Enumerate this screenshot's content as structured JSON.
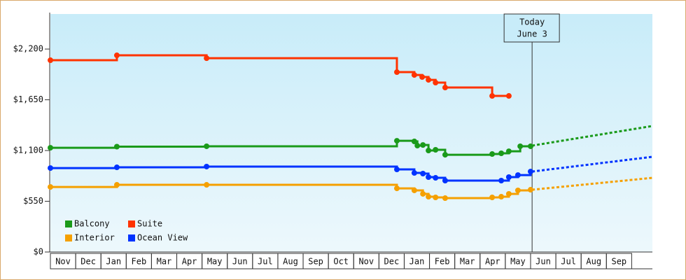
{
  "chart_data": {
    "type": "step-line",
    "ylim": [
      0,
      2580
    ],
    "yticks": [
      {
        "value": 0,
        "label": "$0"
      },
      {
        "value": 550,
        "label": "$550"
      },
      {
        "value": 1100,
        "label": "$1,100"
      },
      {
        "value": 1650,
        "label": "$1,650"
      },
      {
        "value": 2200,
        "label": "$2,200"
      }
    ],
    "xlim": [
      0,
      23.82
    ],
    "xticks": [
      {
        "value": 0,
        "label": "Nov"
      },
      {
        "value": 1,
        "label": "Dec"
      },
      {
        "value": 2,
        "label": "Jan"
      },
      {
        "value": 3,
        "label": "Feb"
      },
      {
        "value": 4,
        "label": "Mar"
      },
      {
        "value": 5,
        "label": "Apr"
      },
      {
        "value": 6,
        "label": "May"
      },
      {
        "value": 7,
        "label": "Jun"
      },
      {
        "value": 8,
        "label": "Jul"
      },
      {
        "value": 9,
        "label": "Aug"
      },
      {
        "value": 10,
        "label": "Sep"
      },
      {
        "value": 11,
        "label": "Oct"
      },
      {
        "value": 12,
        "label": "Nov"
      },
      {
        "value": 13,
        "label": "Dec"
      },
      {
        "value": 14,
        "label": "Jan"
      },
      {
        "value": 15,
        "label": "Feb"
      },
      {
        "value": 16,
        "label": "Mar"
      },
      {
        "value": 17,
        "label": "Apr"
      },
      {
        "value": 18,
        "label": "May"
      },
      {
        "value": 19,
        "label": "Jun"
      },
      {
        "value": 20,
        "label": "Jul"
      },
      {
        "value": 21,
        "label": "Aug"
      },
      {
        "value": 22,
        "label": "Sep"
      }
    ],
    "grid": false,
    "legend": "lower left",
    "annotation": {
      "x": 19.06,
      "lines": [
        "Today",
        "June 3"
      ]
    },
    "series": [
      {
        "name": "Balcony",
        "color": "#1a9a1a",
        "x": [
          0,
          2.63,
          6.18,
          13.71,
          14.4,
          14.52,
          14.74,
          14.96,
          15.24,
          15.62,
          17.48,
          17.84,
          18.14,
          18.59,
          19.0
        ],
        "values": [
          1130,
          1142,
          1146,
          1206,
          1199,
          1153,
          1160,
          1100,
          1108,
          1054,
          1062,
          1070,
          1092,
          1146,
          1146
        ],
        "forecast": {
          "x": [
            19.06,
            23.82
          ],
          "values": [
            1153,
            1366
          ]
        }
      },
      {
        "name": "Suite",
        "color": "#ff3300",
        "x": [
          0,
          2.63,
          6.18,
          13.71,
          14.4,
          14.71,
          14.96,
          15.24,
          15.62,
          17.48,
          18.14
        ],
        "values": [
          2079,
          2132,
          2101,
          1950,
          1919,
          1897,
          1866,
          1836,
          1783,
          1692,
          1692
        ]
      },
      {
        "name": "Interior",
        "color": "#f5a000",
        "x": [
          0,
          2.63,
          6.18,
          13.71,
          14.4,
          14.74,
          14.96,
          15.24,
          15.62,
          17.48,
          17.84,
          18.14,
          18.5,
          19.0
        ],
        "values": [
          705,
          728,
          728,
          690,
          668,
          630,
          599,
          592,
          584,
          592,
          599,
          630,
          668,
          675
        ],
        "forecast": {
          "x": [
            19.06,
            23.82
          ],
          "values": [
            675,
            804
          ]
        }
      },
      {
        "name": "Ocean View",
        "color": "#0033ff",
        "x": [
          0,
          2.63,
          6.18,
          13.71,
          14.4,
          14.74,
          14.96,
          15.24,
          15.62,
          17.84,
          18.14,
          18.5,
          19.0
        ],
        "values": [
          910,
          918,
          926,
          895,
          857,
          850,
          812,
          804,
          774,
          774,
          812,
          834,
          872
        ],
        "forecast": {
          "x": [
            19.06,
            23.82
          ],
          "values": [
            872,
            1032
          ]
        }
      }
    ]
  }
}
